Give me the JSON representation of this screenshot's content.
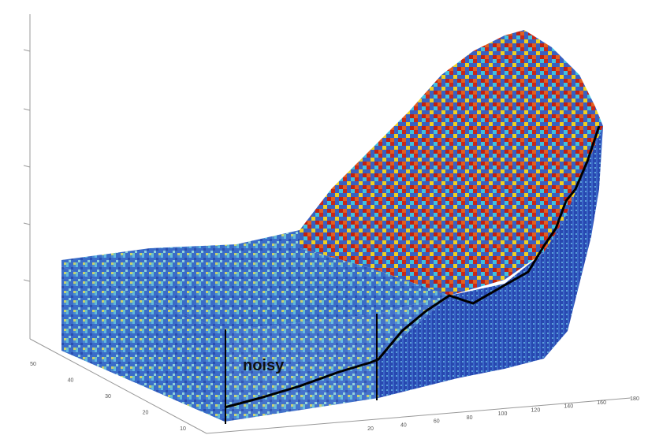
{
  "annotation": "noisy",
  "axes": {
    "depth_tick_labels": [
      "50",
      "40",
      "30",
      "20",
      "10"
    ],
    "length_tick_labels": [
      "20",
      "40",
      "60",
      "80",
      "100",
      "120",
      "140",
      "160",
      "180"
    ]
  }
}
